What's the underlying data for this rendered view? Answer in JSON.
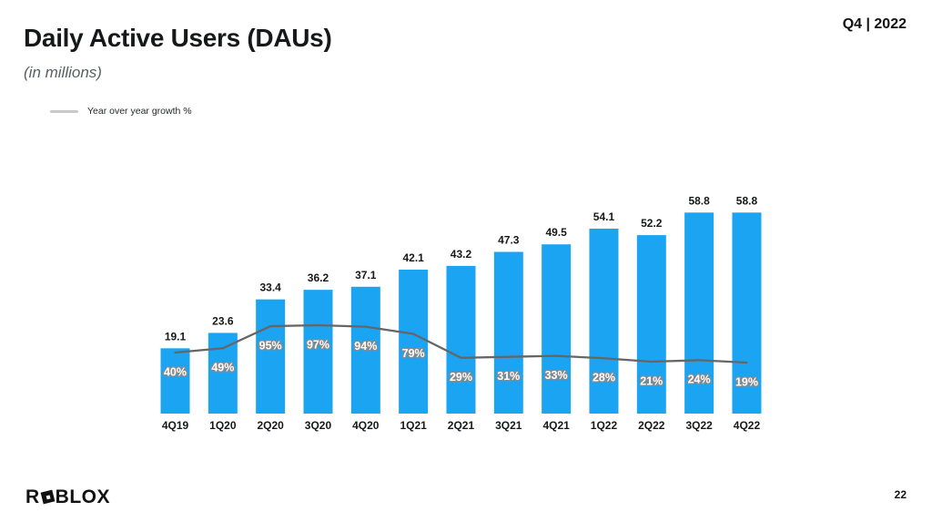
{
  "slide": {
    "title": "Daily Active Users (DAUs)",
    "subtitle": "(in millions)",
    "quarter_badge": "Q4 | 2022",
    "page_number": "22",
    "logo": {
      "text_r": "R",
      "text_blox": "BLOX"
    }
  },
  "legend": {
    "label": "Year over year growth %"
  },
  "chart_data": {
    "type": "bar",
    "title": "Daily Active Users (DAUs)",
    "subtitle": "(in millions)",
    "categories": [
      "4Q19",
      "1Q20",
      "2Q20",
      "3Q20",
      "4Q20",
      "1Q21",
      "2Q21",
      "3Q21",
      "4Q21",
      "1Q22",
      "2Q22",
      "3Q22",
      "4Q22"
    ],
    "series": [
      {
        "name": "DAUs (in millions)",
        "type": "bar",
        "values": [
          19.1,
          23.6,
          33.4,
          36.2,
          37.1,
          42.1,
          43.2,
          47.3,
          49.5,
          54.1,
          52.2,
          58.8,
          58.8
        ]
      },
      {
        "name": "Year over year growth %",
        "type": "line",
        "values": [
          40,
          49,
          95,
          97,
          94,
          79,
          29,
          31,
          33,
          28,
          21,
          24,
          19
        ],
        "unit": "%"
      }
    ],
    "bar_color": "#1AA4F2",
    "line_color": "#666666",
    "value_label_color": "#17181a",
    "pct_label_fill": "#ffffff",
    "pct_label_stroke": "#8a8a8a",
    "grid": "off",
    "legend_position": "top-left",
    "y_axis_visible": false
  }
}
